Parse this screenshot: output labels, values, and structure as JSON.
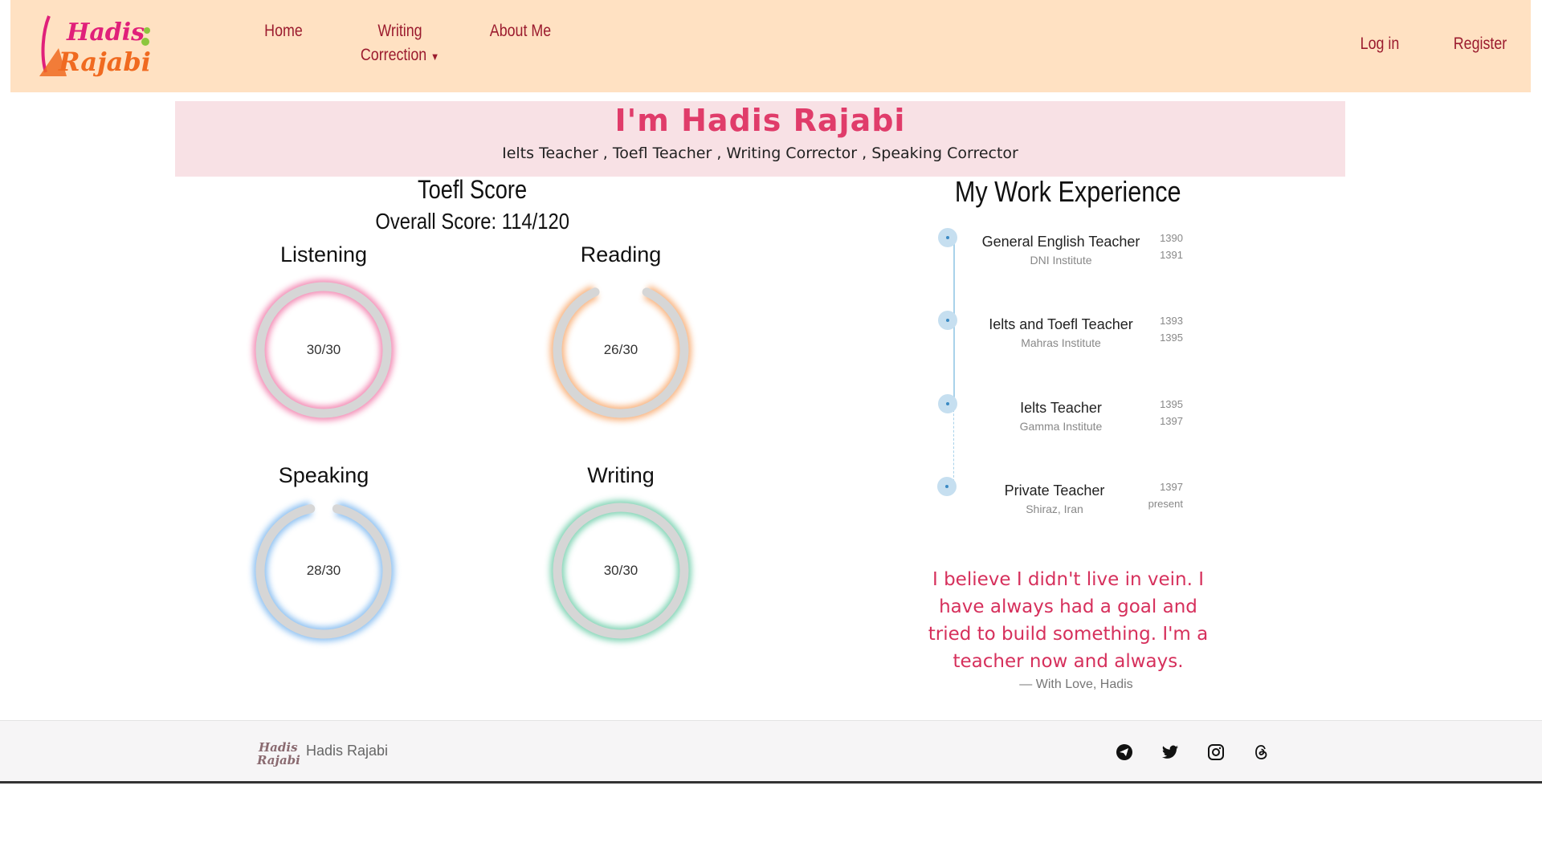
{
  "nav": {
    "logo_text": "Hadis Rajabi",
    "items": [
      {
        "label": "Home"
      },
      {
        "label": "Writing"
      },
      {
        "label": "Correction"
      },
      {
        "label": "About Me"
      }
    ],
    "login": "Log in",
    "register": "Register"
  },
  "hero": {
    "title": "I'm Hadis Rajabi",
    "subtitle": "Ielts Teacher , Toefl Teacher , Writing Corrector , Speaking Corrector"
  },
  "scores": {
    "title": "Toefl Score",
    "overall": "Overall Score: 114/120",
    "items": [
      {
        "label": "Listening",
        "text": "30/30",
        "value": 30,
        "max": 30,
        "color": "#f06ca0"
      },
      {
        "label": "Reading",
        "text": "26/30",
        "value": 26,
        "max": 30,
        "color": "#f7a05e"
      },
      {
        "label": "Speaking",
        "text": "28/30",
        "value": 28,
        "max": 30,
        "color": "#6fb0ee"
      },
      {
        "label": "Writing",
        "text": "30/30",
        "value": 30,
        "max": 30,
        "color": "#5ec8a0"
      }
    ]
  },
  "experience": {
    "title": "My Work Experience",
    "items": [
      {
        "title": "General English Teacher",
        "place": "DNI Institute",
        "from": "1390",
        "to": "1391"
      },
      {
        "title": "Ielts and Toefl Teacher",
        "place": "Mahras Institute",
        "from": "1393",
        "to": "1395"
      },
      {
        "title": "Ielts Teacher",
        "place": "Gamma Institute",
        "from": "1395",
        "to": "1397"
      },
      {
        "title": "Private Teacher",
        "place": "Shiraz, Iran",
        "from": "1397",
        "to": "present"
      }
    ]
  },
  "quote": {
    "text": "I believe I didn't live in vein. I have always had a goal and tried to build something. I'm a teacher now and always.",
    "signature": "— With Love, Hadis"
  },
  "footer": {
    "name": "Hadis Rajabi",
    "social": [
      "telegram-icon",
      "twitter-icon",
      "instagram-icon",
      "threads-icon"
    ]
  }
}
